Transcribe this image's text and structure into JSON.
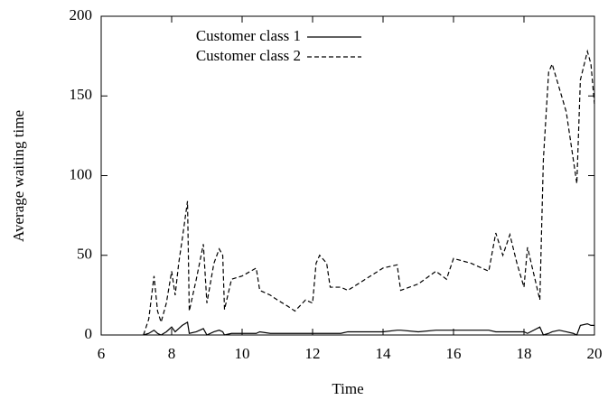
{
  "chart_data": {
    "type": "line",
    "xlabel": "Time",
    "ylabel": "Average waiting time",
    "x": [
      7.2,
      7.35,
      7.5,
      7.6,
      7.7,
      7.85,
      8.0,
      8.1,
      8.2,
      8.3,
      8.45,
      8.5,
      8.7,
      8.9,
      9.0,
      9.2,
      9.35,
      9.45,
      9.5,
      9.7,
      10.0,
      10.4,
      10.5,
      10.8,
      11.0,
      11.3,
      11.5,
      11.8,
      12.0,
      12.1,
      12.2,
      12.4,
      12.5,
      12.8,
      13.0,
      13.5,
      14.0,
      14.4,
      14.5,
      15.0,
      15.5,
      15.8,
      16.0,
      16.5,
      17.0,
      17.2,
      17.4,
      17.6,
      17.8,
      18.0,
      18.1,
      18.45,
      18.55,
      18.7,
      18.8,
      19.0,
      19.2,
      19.4,
      19.5,
      19.6,
      19.8,
      19.9,
      20.0
    ],
    "series": [
      {
        "name": "Customer class 1",
        "color": "#000000",
        "style": "solid",
        "values": [
          0,
          1,
          3,
          1,
          0,
          2,
          5,
          2,
          4,
          6,
          8,
          1,
          2,
          4,
          0,
          2,
          3,
          2,
          0,
          1,
          1,
          1,
          2,
          1,
          1,
          1,
          1,
          1,
          1,
          1,
          1,
          1,
          1,
          1,
          2,
          2,
          2,
          3,
          3,
          2,
          3,
          3,
          3,
          3,
          3,
          2,
          2,
          2,
          2,
          2,
          1,
          5,
          0,
          1,
          2,
          3,
          2,
          1,
          0,
          6,
          7,
          6,
          6
        ]
      },
      {
        "name": "Customer class 2",
        "color": "#000000",
        "style": "dashed",
        "values": [
          0,
          10,
          37,
          15,
          8,
          20,
          40,
          25,
          45,
          60,
          84,
          15,
          35,
          57,
          20,
          45,
          54,
          50,
          16,
          35,
          37,
          42,
          28,
          25,
          22,
          18,
          15,
          22,
          20,
          45,
          50,
          45,
          30,
          30,
          28,
          35,
          42,
          44,
          28,
          32,
          40,
          35,
          48,
          45,
          40,
          64,
          50,
          63,
          45,
          30,
          55,
          22,
          110,
          165,
          170,
          155,
          140,
          110,
          95,
          160,
          178,
          170,
          145
        ]
      }
    ],
    "xlim": [
      6,
      20
    ],
    "xticks": [
      6,
      8,
      10,
      12,
      14,
      16,
      18,
      20
    ],
    "ylim": [
      0,
      200
    ],
    "yticks": [
      0,
      50,
      100,
      150,
      200
    ],
    "legend": "top-center"
  }
}
